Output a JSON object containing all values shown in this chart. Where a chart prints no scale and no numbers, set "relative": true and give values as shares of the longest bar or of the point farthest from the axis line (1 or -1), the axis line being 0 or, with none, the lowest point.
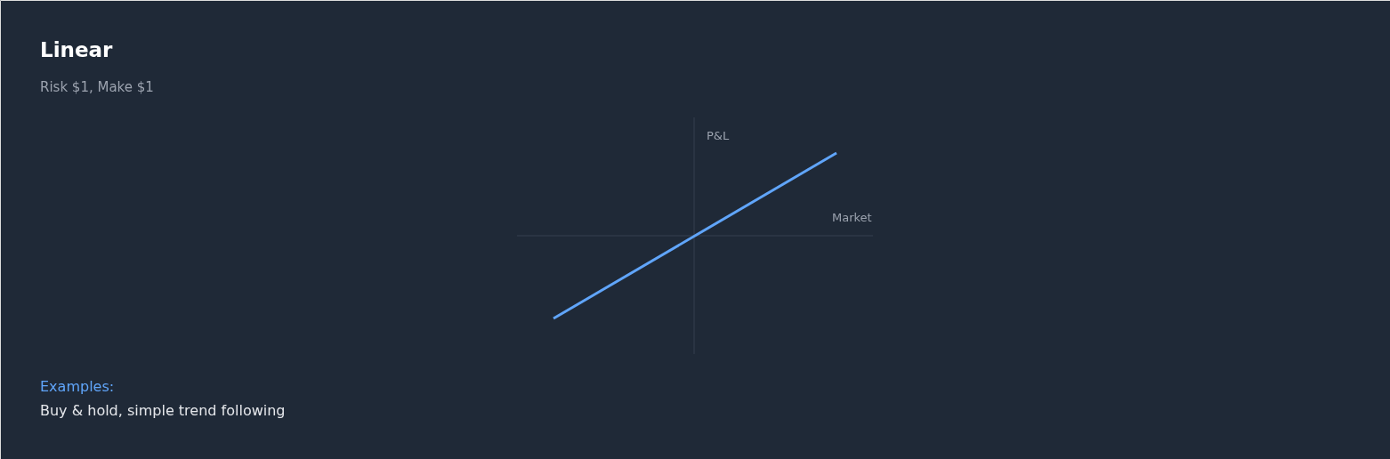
{
  "chart_data": {
    "type": "line",
    "title": "Linear",
    "subtitle": "Risk $1, Make $1",
    "xlabel": "Market",
    "ylabel": "P&L",
    "annotations": [
      "Examples:",
      "Buy & hold, simple trend following"
    ],
    "categories": [
      null,
      null,
      null
    ],
    "relative": true,
    "series": [
      {
        "color": "#60a5fa",
        "values": [
          -1,
          0,
          1
        ]
      }
    ]
  }
}
